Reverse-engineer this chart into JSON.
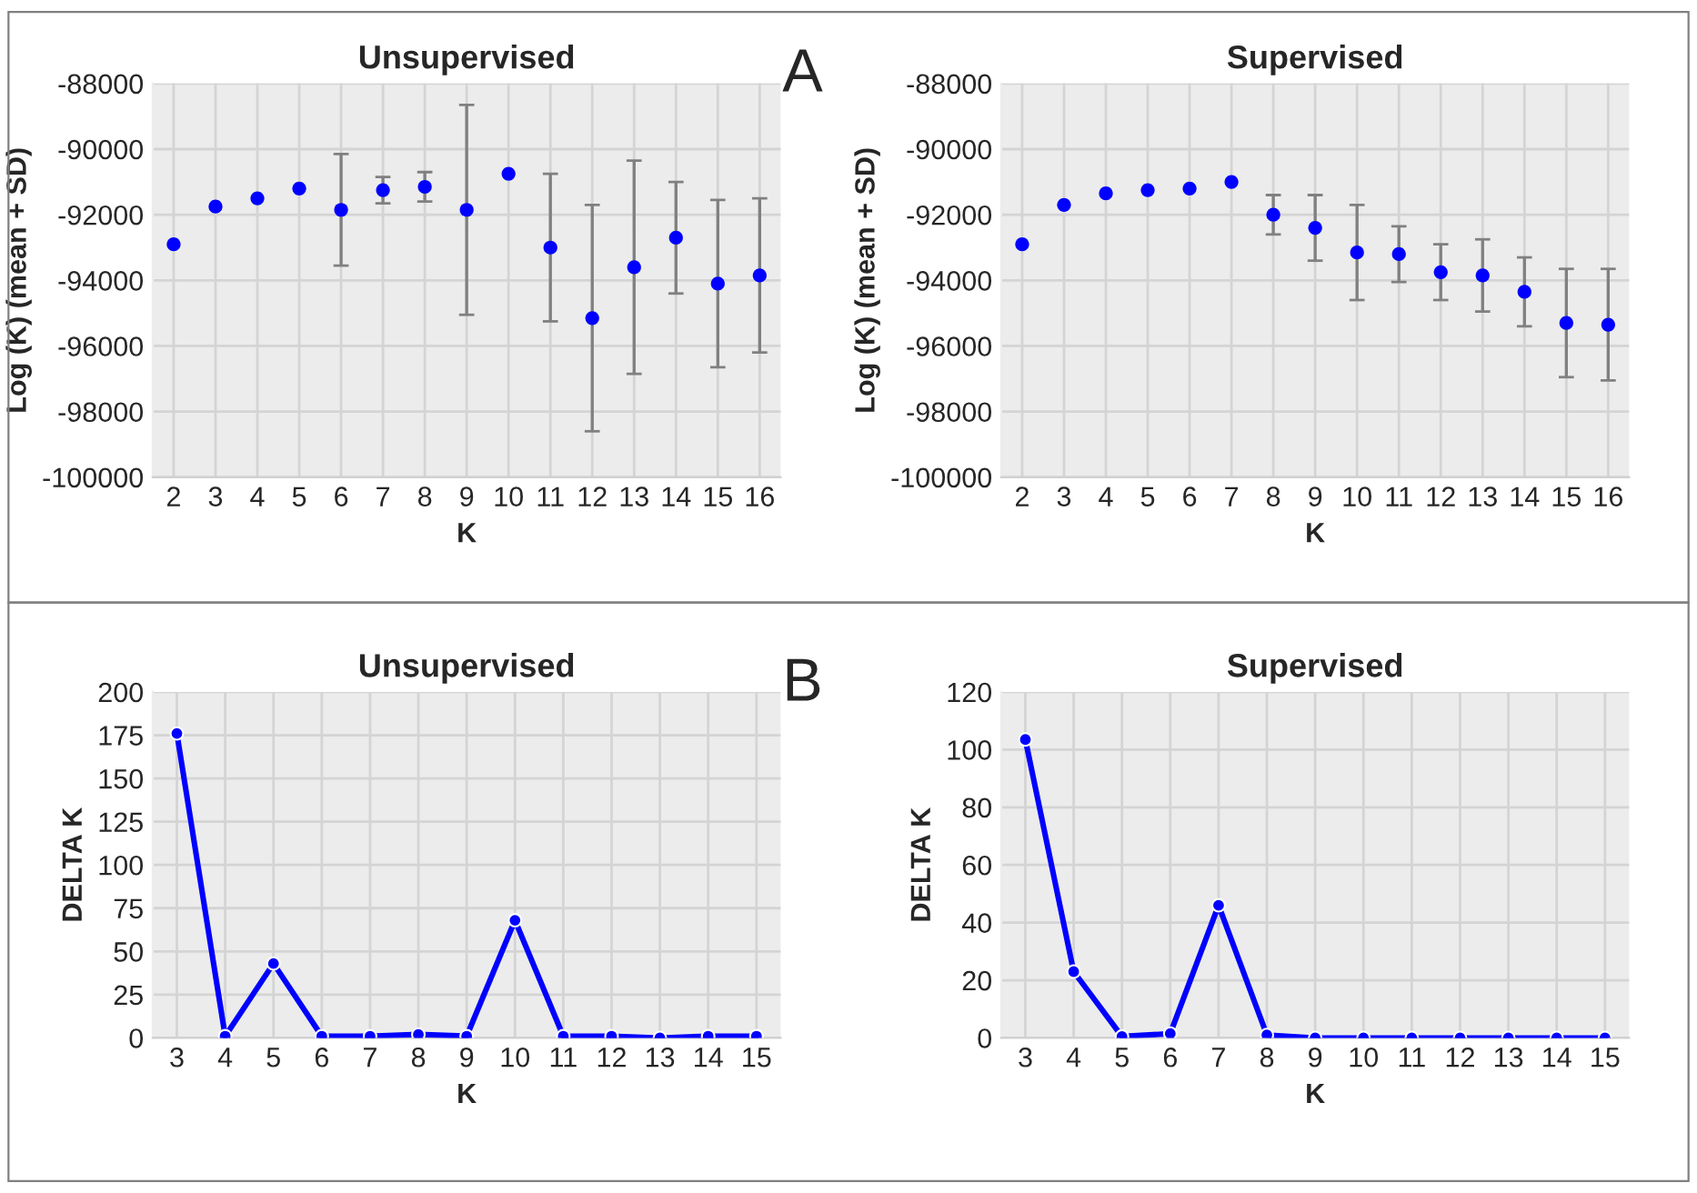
{
  "chart_data": [
    {
      "type": "scatter",
      "title": "Unsupervised",
      "xlabel": "K",
      "ylabel": "Log (K) (mean + SD)",
      "annotations": [
        "A"
      ],
      "categories": [
        "2",
        "3",
        "4",
        "5",
        "6",
        "7",
        "8",
        "9",
        "10",
        "11",
        "12",
        "13",
        "14",
        "15",
        "16"
      ],
      "series": [
        {
          "color": "#0000ff",
          "values": [
            -92900,
            -91750,
            -91500,
            -91200,
            -91850,
            -91250,
            -91150,
            -91850,
            -90750,
            -93000,
            -95150,
            -93600,
            -92700,
            -94100,
            -93850
          ],
          "errors": [
            null,
            null,
            null,
            null,
            1700,
            400,
            450,
            3200,
            null,
            2250,
            3450,
            3250,
            1700,
            2550,
            2350
          ]
        }
      ],
      "ylim": [
        -100000,
        -88000
      ],
      "yticks": [
        -100000,
        -98000,
        -96000,
        -94000,
        -92000,
        -90000,
        -88000
      ],
      "grid": true,
      "marker": "circle",
      "legend": false
    },
    {
      "type": "scatter",
      "title": "Supervised",
      "xlabel": "K",
      "ylabel": "Log (K) (mean + SD)",
      "categories": [
        "2",
        "3",
        "4",
        "5",
        "6",
        "7",
        "8",
        "9",
        "10",
        "11",
        "12",
        "13",
        "14",
        "15",
        "16"
      ],
      "series": [
        {
          "color": "#0000ff",
          "values": [
            -92900,
            -91700,
            -91350,
            -91250,
            -91200,
            -91000,
            -92000,
            -92400,
            -93150,
            -93200,
            -93750,
            -93850,
            -94350,
            -95300,
            -95350
          ],
          "errors": [
            null,
            null,
            null,
            null,
            null,
            null,
            600,
            1000,
            1450,
            850,
            850,
            1100,
            1050,
            1650,
            1700
          ]
        }
      ],
      "ylim": [
        -100000,
        -88000
      ],
      "yticks": [
        -100000,
        -98000,
        -96000,
        -94000,
        -92000,
        -90000,
        -88000
      ],
      "grid": true,
      "marker": "circle",
      "legend": false
    },
    {
      "type": "line",
      "title": "Unsupervised",
      "xlabel": "K",
      "ylabel": "DELTA K",
      "annotations": [
        "B"
      ],
      "categories": [
        "3",
        "4",
        "5",
        "6",
        "7",
        "8",
        "9",
        "10",
        "11",
        "12",
        "13",
        "14",
        "15"
      ],
      "series": [
        {
          "color": "#0000ff",
          "values": [
            176,
            1,
            43,
            1,
            1,
            2,
            1,
            68,
            1,
            1,
            0,
            1,
            1
          ]
        }
      ],
      "ylim": [
        0,
        200
      ],
      "yticks": [
        0,
        25,
        50,
        75,
        100,
        125,
        150,
        175,
        200
      ],
      "grid": true,
      "marker": "circle",
      "line_style": "solid",
      "legend": false
    },
    {
      "type": "line",
      "title": "Supervised",
      "xlabel": "K",
      "ylabel": "DELTA K",
      "categories": [
        "3",
        "4",
        "5",
        "6",
        "7",
        "8",
        "9",
        "10",
        "11",
        "12",
        "13",
        "14",
        "15"
      ],
      "series": [
        {
          "color": "#0000ff",
          "values": [
            103.5,
            23,
            0.5,
            1.5,
            46,
            1,
            0,
            0,
            0,
            0,
            0,
            0,
            0
          ]
        }
      ],
      "ylim": [
        0,
        120
      ],
      "yticks": [
        0,
        20,
        40,
        60,
        80,
        100,
        120
      ],
      "grid": true,
      "marker": "circle",
      "line_style": "solid",
      "legend": false
    }
  ]
}
